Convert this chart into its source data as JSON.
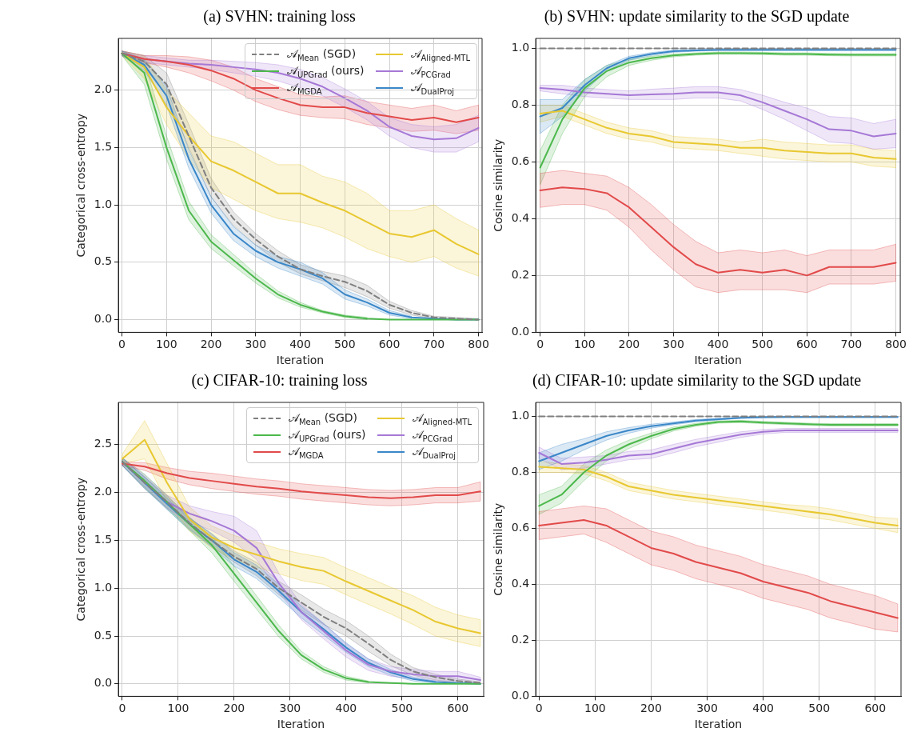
{
  "chart_data": [
    {
      "type": "line",
      "title": "(a) SVHN: training loss",
      "xlabel": "Iteration",
      "ylabel": "Categorical cross-entropy",
      "x": [
        0,
        50,
        100,
        150,
        200,
        250,
        300,
        350,
        400,
        450,
        500,
        550,
        600,
        650,
        700,
        750,
        800
      ],
      "xlim": [
        -8,
        808
      ],
      "xticks": [
        0,
        100,
        200,
        300,
        400,
        500,
        600,
        700,
        800
      ],
      "ylim": [
        -0.11,
        2.45
      ],
      "yticks": [
        {
          "value": 0,
          "label": "0.0"
        },
        0.5,
        {
          "value": 1,
          "label": "1.0"
        },
        1.5,
        {
          "value": 2,
          "label": "2.0"
        }
      ],
      "grid": true,
      "legend": "top right",
      "marker": "none",
      "series": [
        {
          "name": "𝒜$_{Mean}$ (SGD)",
          "color": "#7f7f7f",
          "line_style": "dashed",
          "values": [
            2.32,
            2.25,
            2.05,
            1.6,
            1.15,
            0.88,
            0.7,
            0.55,
            0.44,
            0.38,
            0.33,
            0.25,
            0.13,
            0.06,
            0.02,
            0.01,
            0.0
          ],
          "lower": [
            2.3,
            2.2,
            1.95,
            1.5,
            1.07,
            0.82,
            0.65,
            0.5,
            0.4,
            0.34,
            0.28,
            0.2,
            0.1,
            0.04,
            0.01,
            0.0,
            0.0
          ],
          "upper": [
            2.34,
            2.3,
            2.15,
            1.7,
            1.23,
            0.94,
            0.75,
            0.6,
            0.48,
            0.42,
            0.38,
            0.3,
            0.16,
            0.08,
            0.03,
            0.02,
            0.01
          ]
        },
        {
          "name": "𝒜$_{UPGrad}$ (ours)",
          "color": "#4cb84c",
          "values": [
            2.32,
            2.15,
            1.5,
            0.95,
            0.68,
            0.52,
            0.36,
            0.22,
            0.13,
            0.07,
            0.03,
            0.01,
            0.0,
            0.0,
            0.0,
            0.0,
            0.0
          ],
          "lower": [
            2.3,
            2.05,
            1.4,
            0.87,
            0.62,
            0.47,
            0.32,
            0.19,
            0.11,
            0.06,
            0.02,
            0.0,
            null,
            null,
            null,
            null,
            null
          ],
          "upper": [
            2.34,
            2.25,
            1.6,
            1.03,
            0.74,
            0.57,
            0.4,
            0.25,
            0.15,
            0.08,
            0.04,
            0.02,
            null,
            null,
            null,
            null,
            null
          ]
        },
        {
          "name": "𝒜$_{MGDA}$",
          "color": "#e24a4a",
          "values": [
            2.32,
            2.27,
            2.25,
            2.22,
            2.17,
            2.1,
            2.0,
            1.93,
            1.87,
            1.85,
            1.85,
            1.8,
            1.77,
            1.74,
            1.76,
            1.72,
            1.76
          ],
          "lower": [
            2.3,
            2.24,
            2.2,
            2.15,
            2.08,
            2.0,
            1.9,
            1.83,
            1.78,
            1.76,
            1.75,
            1.7,
            1.67,
            1.64,
            1.65,
            1.62,
            1.65
          ],
          "upper": [
            2.34,
            2.3,
            2.3,
            2.29,
            2.26,
            2.2,
            2.1,
            2.03,
            1.96,
            1.94,
            1.95,
            1.9,
            1.87,
            1.84,
            1.87,
            1.82,
            1.87
          ]
        },
        {
          "name": "𝒜$_{Aligned-MTL}$",
          "color": "#e8c830",
          "values": [
            2.32,
            2.2,
            1.85,
            1.6,
            1.38,
            1.3,
            1.2,
            1.1,
            1.1,
            1.02,
            0.95,
            0.85,
            0.75,
            0.72,
            0.78,
            0.66,
            0.57
          ],
          "lower": [
            2.3,
            2.1,
            1.7,
            1.4,
            1.15,
            1.05,
            0.95,
            0.88,
            0.85,
            0.8,
            0.72,
            0.62,
            0.55,
            0.5,
            0.55,
            0.45,
            0.38
          ],
          "upper": [
            2.34,
            2.3,
            2.0,
            1.8,
            1.6,
            1.55,
            1.45,
            1.35,
            1.35,
            1.25,
            1.2,
            1.1,
            0.95,
            0.95,
            1.0,
            0.88,
            0.78
          ]
        },
        {
          "name": "𝒜$_{PCGrad}$",
          "color": "#a678d6",
          "values": [
            2.32,
            2.27,
            2.25,
            2.23,
            2.22,
            2.2,
            2.18,
            2.15,
            2.1,
            2.03,
            1.93,
            1.82,
            1.68,
            1.6,
            1.57,
            1.58,
            1.67
          ],
          "lower": [
            2.3,
            2.24,
            2.22,
            2.2,
            2.18,
            2.15,
            2.12,
            2.08,
            2.02,
            1.95,
            1.85,
            1.74,
            1.6,
            1.5,
            1.46,
            1.46,
            1.55
          ],
          "upper": [
            2.34,
            2.3,
            2.28,
            2.26,
            2.26,
            2.25,
            2.24,
            2.22,
            2.18,
            2.11,
            2.01,
            1.9,
            1.76,
            1.7,
            1.68,
            1.7,
            1.78
          ]
        },
        {
          "name": "𝒜$_{DualProj}$",
          "color": "#3a87c8",
          "values": [
            2.32,
            2.22,
            1.95,
            1.4,
            1.0,
            0.75,
            0.6,
            0.5,
            0.44,
            0.36,
            0.22,
            0.15,
            0.06,
            0.02,
            0.01,
            0.0,
            0.0
          ],
          "lower": [
            2.3,
            2.17,
            1.87,
            1.32,
            0.93,
            0.69,
            0.55,
            0.45,
            0.38,
            0.31,
            0.18,
            0.12,
            0.04,
            0.01,
            null,
            null,
            null
          ],
          "upper": [
            2.34,
            2.27,
            2.03,
            1.48,
            1.07,
            0.81,
            0.65,
            0.55,
            0.5,
            0.41,
            0.26,
            0.18,
            0.08,
            0.03,
            null,
            null,
            null
          ]
        }
      ]
    },
    {
      "type": "line",
      "title": "(b) SVHN: update similarity to the SGD update",
      "xlabel": "Iteration",
      "ylabel": "Cosine similarity",
      "x": [
        0,
        50,
        100,
        150,
        200,
        250,
        300,
        350,
        400,
        450,
        500,
        550,
        600,
        650,
        700,
        750,
        800
      ],
      "xlim": [
        -10,
        810
      ],
      "xticks": [
        0,
        100,
        200,
        300,
        400,
        500,
        600,
        700,
        800
      ],
      "ylim": [
        0,
        1.035
      ],
      "yticks": [
        {
          "value": 0,
          "label": "0.0"
        },
        0.2,
        0.4,
        0.6,
        0.8,
        {
          "value": 1,
          "label": "1.0"
        }
      ],
      "grid": true,
      "marker": "none",
      "series": [
        {
          "color": "#7f7f7f",
          "line_style": "dashed",
          "values": [
            1,
            1,
            1,
            1,
            1,
            1,
            1,
            1,
            1,
            1,
            1,
            1,
            1,
            1,
            1,
            1,
            1
          ]
        },
        {
          "color": "#4cb84c",
          "values": [
            0.58,
            0.75,
            0.86,
            0.92,
            0.95,
            0.965,
            0.975,
            0.98,
            0.983,
            0.983,
            0.982,
            0.98,
            0.98,
            0.978,
            0.977,
            0.977,
            0.977
          ],
          "lower": [
            0.52,
            0.7,
            0.83,
            0.9,
            0.94,
            0.958,
            0.97,
            0.976,
            0.979,
            0.979,
            0.978,
            0.976,
            0.976,
            0.974,
            0.973,
            0.973,
            0.973
          ],
          "upper": [
            0.64,
            0.8,
            0.89,
            0.94,
            0.96,
            0.972,
            0.98,
            0.984,
            0.987,
            0.987,
            0.986,
            0.984,
            0.984,
            0.982,
            0.981,
            0.981,
            0.981
          ]
        },
        {
          "color": "#e24a4a",
          "values": [
            0.5,
            0.51,
            0.505,
            0.49,
            0.44,
            0.37,
            0.3,
            0.24,
            0.21,
            0.22,
            0.21,
            0.22,
            0.2,
            0.23,
            0.23,
            0.23,
            0.245
          ],
          "lower": [
            0.44,
            0.45,
            0.45,
            0.43,
            0.37,
            0.29,
            0.22,
            0.16,
            0.14,
            0.15,
            0.15,
            0.15,
            0.14,
            0.17,
            0.17,
            0.17,
            0.18
          ],
          "upper": [
            0.56,
            0.57,
            0.56,
            0.55,
            0.51,
            0.45,
            0.38,
            0.32,
            0.28,
            0.29,
            0.28,
            0.29,
            0.27,
            0.29,
            0.29,
            0.29,
            0.31
          ]
        },
        {
          "color": "#e8c830",
          "values": [
            0.77,
            0.78,
            0.75,
            0.72,
            0.7,
            0.69,
            0.67,
            0.665,
            0.66,
            0.65,
            0.65,
            0.64,
            0.635,
            0.63,
            0.63,
            0.615,
            0.61
          ],
          "lower": [
            0.74,
            0.76,
            0.73,
            0.7,
            0.68,
            0.67,
            0.65,
            0.645,
            0.64,
            0.63,
            0.62,
            0.61,
            0.605,
            0.6,
            0.6,
            0.585,
            0.58
          ],
          "upper": [
            0.8,
            0.8,
            0.77,
            0.74,
            0.72,
            0.71,
            0.69,
            0.685,
            0.68,
            0.67,
            0.68,
            0.67,
            0.665,
            0.66,
            0.66,
            0.645,
            0.64
          ]
        },
        {
          "color": "#a678d6",
          "values": [
            0.86,
            0.855,
            0.845,
            0.84,
            0.835,
            0.838,
            0.84,
            0.845,
            0.845,
            0.835,
            0.81,
            0.78,
            0.75,
            0.715,
            0.71,
            0.69,
            0.7
          ],
          "lower": [
            0.85,
            0.84,
            0.83,
            0.825,
            0.82,
            0.82,
            0.82,
            0.825,
            0.825,
            0.815,
            0.785,
            0.75,
            0.71,
            0.67,
            0.665,
            0.645,
            0.65
          ],
          "upper": [
            0.87,
            0.87,
            0.86,
            0.855,
            0.85,
            0.856,
            0.86,
            0.865,
            0.865,
            0.855,
            0.835,
            0.81,
            0.79,
            0.76,
            0.755,
            0.735,
            0.75
          ]
        },
        {
          "color": "#3a87c8",
          "values": [
            0.76,
            0.79,
            0.87,
            0.93,
            0.965,
            0.98,
            0.99,
            0.993,
            0.995,
            0.995,
            0.995,
            0.995,
            0.995,
            0.995,
            0.995,
            0.995,
            0.995
          ],
          "lower": [
            0.7,
            0.76,
            0.85,
            0.92,
            0.958,
            0.975,
            0.986,
            0.99,
            0.992,
            0.992,
            0.992,
            0.992,
            0.992,
            0.992,
            0.992,
            0.992,
            0.992
          ],
          "upper": [
            0.82,
            0.82,
            0.89,
            0.94,
            0.972,
            0.985,
            0.994,
            0.996,
            0.998,
            0.998,
            0.998,
            0.998,
            0.998,
            0.998,
            0.998,
            0.998,
            0.998
          ]
        }
      ]
    },
    {
      "type": "line",
      "title": "(c) CIFAR-10: training loss",
      "xlabel": "Iteration",
      "ylabel": "Categorical cross-entropy",
      "x": [
        0,
        40,
        80,
        120,
        160,
        200,
        240,
        280,
        320,
        360,
        400,
        440,
        480,
        520,
        560,
        600,
        640
      ],
      "xlim": [
        -7,
        646
      ],
      "xticks": [
        0,
        100,
        200,
        300,
        400,
        500,
        600
      ],
      "ylim": [
        -0.13,
        2.94
      ],
      "yticks": [
        {
          "value": 0,
          "label": "0.0"
        },
        0.5,
        {
          "value": 1,
          "label": "1.0"
        },
        1.5,
        {
          "value": 2,
          "label": "2.0"
        },
        2.5
      ],
      "grid": true,
      "legend": "top right",
      "marker": "none",
      "series": [
        {
          "name": "𝒜$_{Mean}$ (SGD)",
          "color": "#7f7f7f",
          "line_style": "dashed",
          "values": [
            2.32,
            2.1,
            1.9,
            1.68,
            1.5,
            1.33,
            1.2,
            1.0,
            0.85,
            0.7,
            0.58,
            0.42,
            0.25,
            0.13,
            0.07,
            0.03,
            0.01
          ],
          "lower": [
            2.28,
            2.04,
            1.84,
            1.62,
            1.44,
            1.27,
            1.13,
            0.93,
            0.77,
            0.62,
            0.5,
            0.34,
            0.19,
            0.09,
            0.04,
            0.01,
            0.0
          ],
          "upper": [
            2.36,
            2.16,
            1.96,
            1.74,
            1.56,
            1.39,
            1.27,
            1.07,
            0.93,
            0.78,
            0.66,
            0.5,
            0.31,
            0.17,
            0.1,
            0.05,
            0.02
          ]
        },
        {
          "name": "𝒜$_{UPGrad}$ (ours)",
          "color": "#4cb84c",
          "values": [
            2.32,
            2.12,
            1.9,
            1.67,
            1.45,
            1.15,
            0.85,
            0.55,
            0.3,
            0.15,
            0.06,
            0.02,
            0.01,
            0.0,
            0.0,
            0.0,
            0.0
          ],
          "lower": [
            2.28,
            2.05,
            1.83,
            1.6,
            1.37,
            1.07,
            0.78,
            0.49,
            0.26,
            0.12,
            0.04,
            0.01,
            null,
            null,
            null,
            null,
            null
          ],
          "upper": [
            2.36,
            2.19,
            1.97,
            1.74,
            1.53,
            1.23,
            0.92,
            0.61,
            0.34,
            0.18,
            0.08,
            0.03,
            null,
            null,
            null,
            null,
            null
          ]
        },
        {
          "name": "𝒜$_{MGDA}$",
          "color": "#e24a4a",
          "values": [
            2.3,
            2.27,
            2.2,
            2.15,
            2.12,
            2.09,
            2.06,
            2.04,
            2.01,
            1.99,
            1.97,
            1.95,
            1.94,
            1.95,
            1.97,
            1.97,
            2.01
          ],
          "lower": [
            2.28,
            2.23,
            2.14,
            2.08,
            2.04,
            2.01,
            1.98,
            1.96,
            1.93,
            1.91,
            1.89,
            1.87,
            1.86,
            1.87,
            1.89,
            1.89,
            1.91
          ],
          "upper": [
            2.32,
            2.31,
            2.26,
            2.22,
            2.2,
            2.17,
            2.14,
            2.12,
            2.09,
            2.07,
            2.05,
            2.03,
            2.02,
            2.03,
            2.05,
            2.05,
            2.11
          ]
        },
        {
          "name": "𝒜$_{Aligned-MTL}$",
          "color": "#e8c830",
          "values": [
            2.35,
            2.55,
            2.1,
            1.72,
            1.53,
            1.42,
            1.35,
            1.28,
            1.22,
            1.18,
            1.07,
            0.97,
            0.87,
            0.77,
            0.65,
            0.58,
            0.53
          ],
          "lower": [
            2.3,
            2.35,
            1.9,
            1.6,
            1.42,
            1.3,
            1.22,
            1.15,
            1.08,
            1.04,
            0.93,
            0.83,
            0.73,
            0.62,
            0.5,
            0.44,
            0.39
          ],
          "upper": [
            2.4,
            2.75,
            2.3,
            1.85,
            1.65,
            1.55,
            1.48,
            1.41,
            1.36,
            1.32,
            1.21,
            1.11,
            1.01,
            0.92,
            0.8,
            0.72,
            0.67
          ]
        },
        {
          "name": "𝒜$_{PCGrad}$",
          "color": "#a678d6",
          "values": [
            2.32,
            2.12,
            1.9,
            1.78,
            1.7,
            1.6,
            1.42,
            1.05,
            0.75,
            0.55,
            0.35,
            0.2,
            0.13,
            0.1,
            0.08,
            0.08,
            0.04
          ],
          "lower": [
            2.28,
            2.06,
            1.83,
            1.7,
            1.6,
            1.48,
            1.3,
            0.95,
            0.67,
            0.47,
            0.28,
            0.14,
            0.08,
            0.05,
            0.03,
            0.03,
            0.01
          ],
          "upper": [
            2.36,
            2.18,
            1.97,
            1.86,
            1.8,
            1.75,
            1.6,
            1.15,
            0.83,
            0.63,
            0.42,
            0.26,
            0.18,
            0.15,
            0.13,
            0.13,
            0.07
          ]
        },
        {
          "name": "𝒜$_{DualProj}$",
          "color": "#3a87c8",
          "values": [
            2.32,
            2.1,
            1.88,
            1.67,
            1.5,
            1.3,
            1.17,
            0.97,
            0.75,
            0.57,
            0.38,
            0.22,
            0.12,
            0.05,
            0.02,
            0.01,
            0.0
          ],
          "lower": [
            2.28,
            2.04,
            1.82,
            1.61,
            1.43,
            1.23,
            1.1,
            0.9,
            0.69,
            0.51,
            0.33,
            0.18,
            0.09,
            0.03,
            0.01,
            null,
            null
          ],
          "upper": [
            2.36,
            2.16,
            1.94,
            1.73,
            1.57,
            1.37,
            1.24,
            1.04,
            0.81,
            0.63,
            0.43,
            0.26,
            0.15,
            0.07,
            0.03,
            null,
            null
          ]
        }
      ]
    },
    {
      "type": "line",
      "title": "(d) CIFAR-10: update similarity to the SGD update",
      "xlabel": "Iteration",
      "ylabel": "Cosine similarity",
      "x": [
        0,
        40,
        80,
        120,
        160,
        200,
        240,
        280,
        320,
        360,
        400,
        440,
        480,
        520,
        560,
        600,
        640
      ],
      "xlim": [
        -6,
        646
      ],
      "xticks": [
        0,
        100,
        200,
        300,
        400,
        500,
        600
      ],
      "ylim": [
        0,
        1.05
      ],
      "yticks": [
        {
          "value": 0,
          "label": "0.0"
        },
        0.2,
        0.4,
        0.6,
        0.8,
        {
          "value": 1,
          "label": "1.0"
        }
      ],
      "grid": true,
      "marker": "none",
      "series": [
        {
          "color": "#7f7f7f",
          "line_style": "dashed",
          "values": [
            1,
            1,
            1,
            1,
            1,
            1,
            1,
            1,
            1,
            1,
            1,
            1,
            1,
            1,
            1,
            1,
            1
          ]
        },
        {
          "color": "#4cb84c",
          "values": [
            0.68,
            0.72,
            0.8,
            0.86,
            0.9,
            0.93,
            0.955,
            0.97,
            0.98,
            0.982,
            0.978,
            0.975,
            0.972,
            0.97,
            0.97,
            0.97,
            0.97
          ],
          "lower": [
            0.65,
            0.69,
            0.77,
            0.84,
            0.885,
            0.92,
            0.948,
            0.965,
            0.976,
            0.978,
            0.974,
            0.971,
            0.968,
            0.966,
            0.966,
            0.966,
            0.966
          ],
          "upper": [
            0.72,
            0.75,
            0.83,
            0.88,
            0.915,
            0.94,
            0.962,
            0.975,
            0.984,
            0.986,
            0.982,
            0.979,
            0.976,
            0.974,
            0.974,
            0.974,
            0.974
          ]
        },
        {
          "color": "#e24a4a",
          "values": [
            0.61,
            0.62,
            0.63,
            0.61,
            0.57,
            0.53,
            0.51,
            0.48,
            0.46,
            0.44,
            0.41,
            0.39,
            0.37,
            0.34,
            0.32,
            0.3,
            0.28
          ],
          "lower": [
            0.56,
            0.57,
            0.58,
            0.55,
            0.51,
            0.47,
            0.45,
            0.42,
            0.4,
            0.38,
            0.35,
            0.33,
            0.31,
            0.28,
            0.26,
            0.24,
            0.23
          ],
          "upper": [
            0.66,
            0.67,
            0.68,
            0.67,
            0.63,
            0.59,
            0.57,
            0.54,
            0.52,
            0.5,
            0.47,
            0.45,
            0.43,
            0.4,
            0.38,
            0.36,
            0.33
          ]
        },
        {
          "color": "#e8c830",
          "values": [
            0.82,
            0.815,
            0.81,
            0.785,
            0.75,
            0.735,
            0.72,
            0.71,
            0.7,
            0.69,
            0.68,
            0.67,
            0.66,
            0.65,
            0.635,
            0.62,
            0.61
          ],
          "lower": [
            0.8,
            0.8,
            0.795,
            0.77,
            0.735,
            0.72,
            0.705,
            0.695,
            0.685,
            0.675,
            0.665,
            0.655,
            0.64,
            0.63,
            0.615,
            0.6,
            0.585
          ],
          "upper": [
            0.84,
            0.83,
            0.825,
            0.8,
            0.765,
            0.75,
            0.735,
            0.725,
            0.715,
            0.705,
            0.695,
            0.685,
            0.68,
            0.67,
            0.655,
            0.64,
            0.635
          ]
        },
        {
          "color": "#a678d6",
          "values": [
            0.87,
            0.83,
            0.835,
            0.845,
            0.86,
            0.865,
            0.885,
            0.905,
            0.92,
            0.935,
            0.945,
            0.95,
            0.95,
            0.95,
            0.95,
            0.95,
            0.95
          ],
          "lower": [
            0.85,
            0.81,
            0.815,
            0.83,
            0.845,
            0.85,
            0.87,
            0.892,
            0.908,
            0.925,
            0.937,
            0.943,
            0.943,
            0.943,
            0.943,
            0.943,
            0.943
          ],
          "upper": [
            0.89,
            0.85,
            0.855,
            0.86,
            0.875,
            0.88,
            0.9,
            0.918,
            0.932,
            0.945,
            0.953,
            0.957,
            0.957,
            0.957,
            0.957,
            0.957,
            0.957
          ]
        },
        {
          "color": "#3a87c8",
          "values": [
            0.84,
            0.87,
            0.9,
            0.93,
            0.95,
            0.965,
            0.975,
            0.985,
            0.99,
            0.995,
            0.997,
            0.998,
            0.998,
            0.998,
            0.998,
            0.998,
            0.998
          ],
          "lower": [
            0.81,
            0.84,
            0.88,
            0.915,
            0.94,
            0.958,
            0.97,
            0.981,
            0.987,
            0.993,
            0.995,
            0.996,
            0.996,
            0.996,
            0.996,
            0.996,
            0.996
          ],
          "upper": [
            0.87,
            0.9,
            0.92,
            0.945,
            0.96,
            0.972,
            0.98,
            0.989,
            0.993,
            0.997,
            0.999,
            1.0,
            1.0,
            1.0,
            1.0,
            1.0,
            1.0
          ]
        }
      ]
    }
  ]
}
